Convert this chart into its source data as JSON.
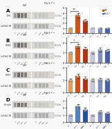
{
  "panels": [
    "A",
    "B",
    "C",
    "D"
  ],
  "bar_data": {
    "A": {
      "values": [
        1.0,
        3.5,
        2.4,
        1.0,
        1.0,
        0.95
      ],
      "errors": [
        0.08,
        0.45,
        0.35,
        0.1,
        0.12,
        0.1
      ],
      "colors": [
        "#e8a050",
        "#d45010",
        "#b83008",
        "#c8c8dc",
        "#8090c0",
        "#4860a8"
      ],
      "ylim": [
        0,
        5.0
      ],
      "yticks": [
        0,
        1,
        2,
        3,
        4,
        5
      ],
      "sig_pairs": [
        [
          0,
          1
        ]
      ],
      "sig_stars": [
        "**"
      ],
      "wb_labels": [
        "FtH1",
        "\\u03b2-TB"
      ],
      "kda_labels": [
        "21 kDa",
        "50 kDa"
      ]
    },
    "B": {
      "values": [
        1.0,
        1.65,
        1.4,
        1.0,
        1.3,
        1.2
      ],
      "errors": [
        0.1,
        0.2,
        0.18,
        0.12,
        0.2,
        0.15
      ],
      "colors": [
        "#e8a050",
        "#d45010",
        "#b83008",
        "#c8c8dc",
        "#8090c0",
        "#4860a8"
      ],
      "ylim": [
        0,
        2.5
      ],
      "yticks": [
        0,
        1,
        2
      ],
      "sig_pairs": [
        [
          0,
          1
        ]
      ],
      "sig_stars": [
        "*"
      ],
      "wb_labels": [
        "IREB2",
        "\\u03b2-TB"
      ],
      "kda_labels": [
        "90 kDa",
        "50 kDa"
      ]
    },
    "C": {
      "values": [
        1.0,
        1.3,
        1.1,
        1.0,
        1.05,
        1.0
      ],
      "errors": [
        0.1,
        0.18,
        0.14,
        0.1,
        0.12,
        0.1
      ],
      "colors": [
        "#e8a050",
        "#d45010",
        "#b83008",
        "#c8c8dc",
        "#8090c0",
        "#4860a8"
      ],
      "ylim": [
        0,
        2.0
      ],
      "yticks": [
        0,
        1,
        2
      ],
      "sig_pairs": [],
      "sig_stars": [],
      "wb_labels": [
        "DMT1",
        "\\u03b2-TB"
      ],
      "kda_labels": [
        "65 kDa",
        "50 kDa"
      ]
    },
    "D": {
      "values": [
        1.0,
        2.2,
        1.8,
        1.0,
        1.5,
        1.3
      ],
      "errors": [
        0.12,
        0.3,
        0.25,
        0.12,
        0.2,
        0.18
      ],
      "colors": [
        "#b0c0e0",
        "#5080c0",
        "#2050a0",
        "#c8c8dc",
        "#8090c0",
        "#4860a8"
      ],
      "ylim": [
        0,
        3.5
      ],
      "yticks": [
        0,
        1,
        2,
        3
      ],
      "sig_pairs": [],
      "sig_stars": [],
      "wb_labels": [
        "Ferrptn",
        "\\u03b2-TB"
      ],
      "kda_labels": [
        "70 kDa",
        "50 kDa"
      ]
    }
  },
  "xt_labels": [
    "ctrl",
    "E-iron",
    "BSO+\\nCINN",
    "ctrl",
    "E-iron",
    "BSO+\\nCINN"
  ],
  "legend_labels": [
    "WT",
    "Fhc1-/-"
  ],
  "legend_colors": [
    "#d45010",
    "#4860a8"
  ],
  "bg_color": "#f8f8f8",
  "wb_bg": "#e8e4de",
  "wb_band_dark": 0.25,
  "wb_band_light": 0.75
}
